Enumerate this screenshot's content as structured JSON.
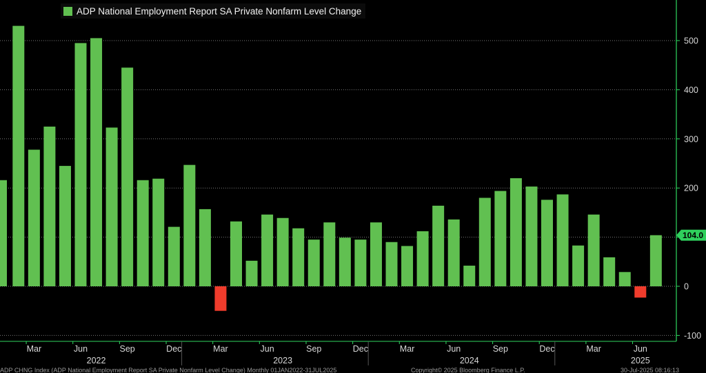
{
  "colors": {
    "background": "#000000",
    "positive_bar": "#61c051",
    "negative_bar": "#f03c2c",
    "grid": "#7a7a7a",
    "axis_line": "#2fd85f",
    "tick_text": "#d8d8d8",
    "label_box": "#2fcf5c"
  },
  "footer": {
    "left": "ADP CHNG Index (ADP National Employment Report SA Private Nonfarm Level Change)  Monthly 01JAN2022-31JUL2025",
    "center": "Copyright© 2025 Bloomberg Finance L.P.",
    "right": "30-Jul-2025 08:16:13"
  },
  "chart_data": {
    "type": "bar",
    "title": "",
    "xlabel": "",
    "ylabel": "",
    "legend": {
      "position": "top-left",
      "entries": [
        "ADP National Employment Report SA Private Nonfarm Level Change"
      ]
    },
    "ylim": [
      -100,
      560
    ],
    "y_ticks": [
      "-100",
      "0",
      "100",
      "200",
      "300",
      "400",
      "500"
    ],
    "grid": true,
    "last_value_label": "104.0",
    "x_month_ticks": [
      {
        "label": "Mar",
        "index": 1
      },
      {
        "label": "Jun",
        "index": 4
      },
      {
        "label": "Sep",
        "index": 7
      },
      {
        "label": "Dec",
        "index": 10
      },
      {
        "label": "Mar",
        "index": 13
      },
      {
        "label": "Jun",
        "index": 16
      },
      {
        "label": "Sep",
        "index": 19
      },
      {
        "label": "Dec",
        "index": 22
      },
      {
        "label": "Mar",
        "index": 25
      },
      {
        "label": "Jun",
        "index": 28
      },
      {
        "label": "Sep",
        "index": 31
      },
      {
        "label": "Dec",
        "index": 34
      },
      {
        "label": "Mar",
        "index": 37
      },
      {
        "label": "Jun",
        "index": 40
      }
    ],
    "x_year_labels": [
      {
        "label": "2022",
        "center_index": 5
      },
      {
        "label": "2023",
        "center_index": 17
      },
      {
        "label": "2024",
        "center_index": 29
      },
      {
        "label": "2025",
        "center_index": 40
      }
    ],
    "categories": [
      "Feb 2022",
      "Mar 2022",
      "Apr 2022",
      "May 2022",
      "Jun 2022",
      "Jul 2022",
      "Aug 2022",
      "Sep 2022",
      "Oct 2022",
      "Nov 2022",
      "Dec 2022",
      "Jan 2023",
      "Feb 2023",
      "Mar 2023",
      "Apr 2023",
      "May 2023",
      "Jun 2023",
      "Jul 2023",
      "Aug 2023",
      "Sep 2023",
      "Oct 2023",
      "Nov 2023",
      "Dec 2023",
      "Jan 2024",
      "Feb 2024",
      "Mar 2024",
      "Apr 2024",
      "May 2024",
      "Jun 2024",
      "Jul 2024",
      "Aug 2024",
      "Sep 2024",
      "Oct 2024",
      "Nov 2024",
      "Dec 2024",
      "Jan 2025",
      "Feb 2025",
      "Mar 2025",
      "Apr 2025",
      "May 2025",
      "Jun 2025",
      "Jul 2025"
    ],
    "values": [
      530,
      278,
      325,
      245,
      495,
      505,
      323,
      445,
      216,
      219,
      121,
      247,
      157,
      -50,
      132,
      52,
      146,
      139,
      118,
      95,
      130,
      99,
      95,
      130,
      90,
      82,
      112,
      164,
      136,
      42,
      180,
      194,
      220,
      203,
      176,
      187,
      83,
      146,
      59,
      29,
      -23,
      104
    ],
    "first_partial_value": 216
  }
}
